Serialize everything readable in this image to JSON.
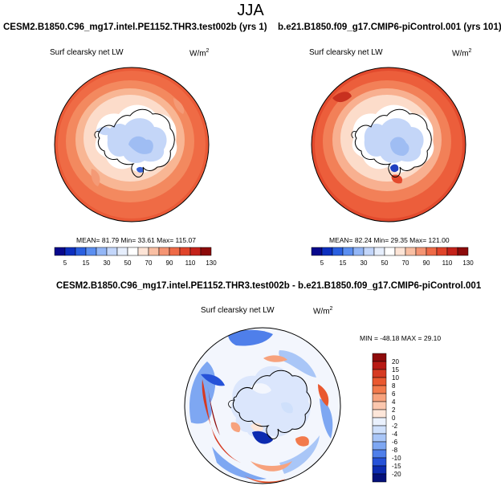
{
  "page_title": "JJA",
  "panels": [
    {
      "title": "CESM2.B1850.C96_mg17.intel.PE1152.THR3.test002b (yrs 1)",
      "variable": "Surf clearsky net LW",
      "units": "W/m",
      "units_exp": "2",
      "stats": "MEAN= 81.79 Min= 33.61 Max= 115.07"
    },
    {
      "title": "b.e21.B1850.f09_g17.CMIP6-piControl.001 (yrs 101)",
      "variable": "Surf clearsky net LW",
      "units": "W/m",
      "units_exp": "2",
      "stats": "MEAN= 82.24 Min= 29.35 Max= 121.00"
    },
    {
      "title": "CESM2.B1850.C96_mg17.intel.PE1152.THR3.test002b - b.e21.B1850.f09_g17.CMIP6-piControl.001",
      "variable": "Surf clearsky net LW",
      "units": "W/m",
      "units_exp": "2",
      "stats": "MIN = -48.18 MAX = 29.10"
    }
  ],
  "colorbar_abs": {
    "labels": [
      "5",
      "15",
      "30",
      "50",
      "70",
      "90",
      "110",
      "130"
    ],
    "colors": [
      "#08088c",
      "#0d2fbf",
      "#2a5fe0",
      "#5b8ef0",
      "#93b6f6",
      "#c3d6fa",
      "#e6eefc",
      "#ffffff",
      "#fde4d6",
      "#f9bfa3",
      "#f49473",
      "#ee6a47",
      "#e0442a",
      "#c4221a",
      "#8c0a0a"
    ]
  },
  "colorbar_diff": {
    "labels": [
      "20",
      "15",
      "10",
      "8",
      "6",
      "4",
      "2",
      "0",
      "-2",
      "-4",
      "-6",
      "-8",
      "-10",
      "-15",
      "-20"
    ],
    "colors": [
      "#8e0b0b",
      "#b81a14",
      "#d63a22",
      "#e9582f",
      "#f27a4c",
      "#f7a27d",
      "#fbc7ae",
      "#fde6d9",
      "#eaf1fd",
      "#cfe0fb",
      "#a9c6f7",
      "#7ea7f2",
      "#4f7fea",
      "#2652d8",
      "#0c2bb0",
      "#04107a"
    ]
  }
}
